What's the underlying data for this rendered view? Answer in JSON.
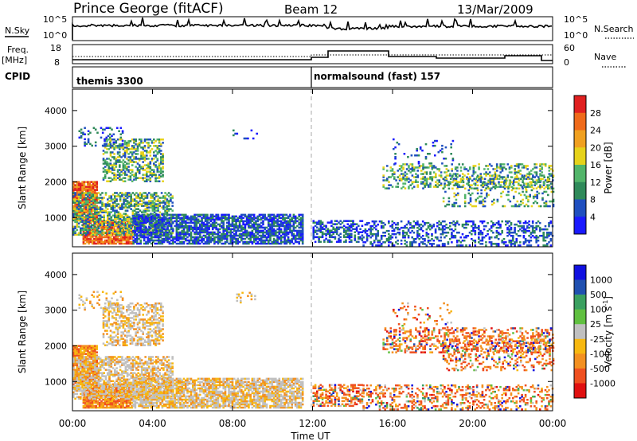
{
  "header": {
    "station": "Prince George (fitACF)",
    "beam": "Beam 12",
    "date": "13/Mar/2009"
  },
  "panels": {
    "nsky_label": "N.Sky",
    "nsearch_label": "N.Search",
    "nsky_ticks": [
      "10^5",
      "10^0"
    ],
    "nsearch_ticks": [
      "10^5",
      "10^0"
    ],
    "freq_label": "Freq.",
    "freq_unit": "[MHz]",
    "freq_ticks": [
      "18",
      "8"
    ],
    "nave_label": "Nave",
    "nave_ticks": [
      "60",
      "0"
    ],
    "cpid_label": "CPID",
    "cpid_modes": [
      "themis 3300",
      "normalsound (fast) 157"
    ]
  },
  "colors": {
    "power_scale": [
      "#1a1aff",
      "#1f4fbf",
      "#2f8a5a",
      "#52b56a",
      "#e6d21a",
      "#f0a020",
      "#ef6a1a",
      "#e02020"
    ],
    "velocity_scale": [
      "#e01010",
      "#ef5020",
      "#f39020",
      "#f7b810",
      "#c0c0c0",
      "#60c040",
      "#3aa060",
      "#2050b0",
      "#1010e0"
    ]
  },
  "chart_data": [
    {
      "type": "heatmap",
      "quantity": "Power",
      "ylabel": "Slant Range [km]",
      "yticks": [
        "1000",
        "2000",
        "3000",
        "4000"
      ],
      "ylim": [
        180,
        4600
      ],
      "colorbar_label": "Power [dB]",
      "colorbar_ticks": [
        "4",
        "8",
        "12",
        "16",
        "20",
        "24",
        "28"
      ],
      "colorbar_range": [
        0,
        32
      ]
    },
    {
      "type": "heatmap",
      "quantity": "Velocity",
      "ylabel": "Slant Range [km]",
      "yticks": [
        "1000",
        "2000",
        "3000",
        "4000"
      ],
      "ylim": [
        180,
        4600
      ],
      "colorbar_label": "Velocity [m s^-1]",
      "colorbar_ticks": [
        "-1000",
        "-500",
        "-100",
        "-25",
        "25",
        "100",
        "500",
        "1000"
      ],
      "xlabel": "Time UT",
      "xticks": [
        "00:00",
        "04:00",
        "08:00",
        "12:00",
        "16:00",
        "20:00",
        "00:00"
      ],
      "xlim": [
        0,
        24
      ]
    }
  ]
}
